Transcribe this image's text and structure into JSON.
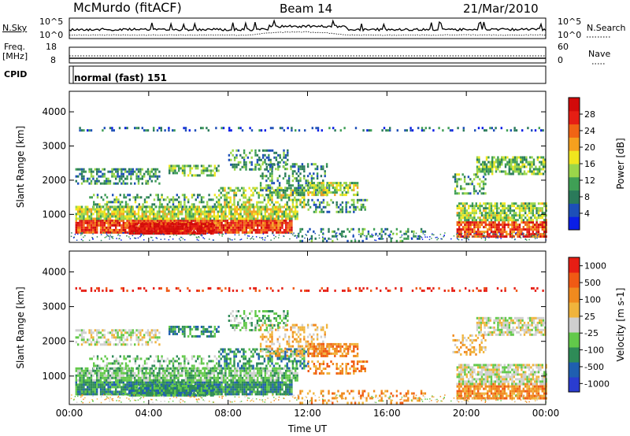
{
  "header": {
    "station": "McMurdo (fitACF)",
    "beam": "Beam 14",
    "date": "21/Mar/2010"
  },
  "meta_panels": {
    "nsky_label": "N.Sky",
    "nsearch_label": "N.Search",
    "nsky_ticks": [
      "10^5",
      "10^0"
    ],
    "nsearch_ticks": [
      "10^5",
      "10^0"
    ],
    "freq_label_1": "Freq.",
    "freq_label_2": "[MHz]",
    "freq_ticks": [
      "18",
      "8"
    ],
    "nave_label": "Nave",
    "nave_ticks": [
      "60",
      "0"
    ],
    "cpid_label": "CPID",
    "cpid_value": "normal (fast) 151"
  },
  "chart_data": [
    {
      "type": "heatmap",
      "name": "power",
      "ylabel": "Slant Range [km]",
      "xlabel": "",
      "x_ticks": [
        "00:00",
        "04:00",
        "08:00",
        "12:00",
        "16:00",
        "20:00",
        "00:00"
      ],
      "x_range_hours": [
        0,
        24
      ],
      "y_ticks": [
        1000,
        2000,
        3000,
        4000
      ],
      "y_range_km": [
        180,
        4600
      ],
      "colorbar": {
        "label": "Power [dB]",
        "tick_labels": [
          "4",
          "8",
          "12",
          "16",
          "20",
          "24",
          "28"
        ],
        "range": [
          0,
          30
        ],
        "colors": [
          "#0a1ee6",
          "#1d4fb8",
          "#2a7a5a",
          "#3f9f55",
          "#9bd64a",
          "#f0e61e",
          "#f5a01e",
          "#f06414",
          "#e61e14",
          "#d20a0a"
        ]
      }
    },
    {
      "type": "heatmap",
      "name": "velocity",
      "ylabel": "Slant Range [km]",
      "xlabel": "Time UT",
      "x_ticks": [
        "00:00",
        "04:00",
        "08:00",
        "12:00",
        "16:00",
        "20:00",
        "00:00"
      ],
      "x_range_hours": [
        0,
        24
      ],
      "y_ticks": [
        1000,
        2000,
        3000,
        4000
      ],
      "y_range_km": [
        180,
        4600
      ],
      "colorbar": {
        "label": "Velocity [m s-1]",
        "tick_labels": [
          "1000",
          "500",
          "100",
          "25",
          "-25",
          "-100",
          "-500",
          "-1000"
        ],
        "colors": [
          "#2a3ccf",
          "#1f5fb0",
          "#2e8b57",
          "#62c94a",
          "#cfcfcf",
          "#f0b43c",
          "#f08a1e",
          "#f05a14",
          "#e61e14"
        ]
      }
    }
  ]
}
